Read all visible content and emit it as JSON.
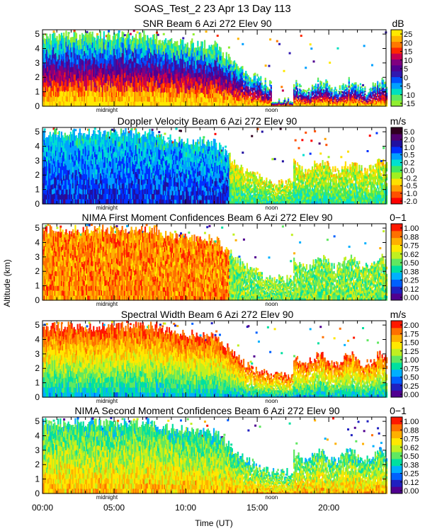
{
  "figure": {
    "title": "SOAS_Test_2  23 Apr 13 Day 113",
    "ylabel": "Altitude (km)",
    "xlabel": "Time (UT)",
    "x_ticks": [
      "00:00",
      "05:00",
      "10:00",
      "15:00",
      "20:00"
    ],
    "x_tick_hours": [
      0,
      5,
      10,
      15,
      20
    ],
    "y_ticks": [
      "0",
      "1",
      "2",
      "3",
      "4",
      "5"
    ],
    "y_tick_values": [
      0,
      1,
      2,
      3,
      4,
      5
    ],
    "marker_labels": {
      "midnight": "midnight",
      "noon": "noon"
    },
    "marker_hours": {
      "midnight": 4.5,
      "noon": 16.0
    }
  },
  "chart_data": [
    {
      "type": "heatmap",
      "title": "SNR Beam 6 Azi 272 Elev 90",
      "units": "dB",
      "xlim": [
        0,
        24
      ],
      "ylim": [
        0,
        5.3
      ],
      "colorbar_ticks": [
        "25",
        "20",
        "15",
        "10",
        "5",
        "0",
        "-5",
        "-10",
        "-15"
      ],
      "colorbar_colors": [
        "#ffe800",
        "#ffb400",
        "#ff7800",
        "#ff2800",
        "#c80050",
        "#800080",
        "#500090",
        "#3018b0",
        "#0050ff",
        "#00a0ff",
        "#00e0c0",
        "#60e860",
        "#90ee30"
      ]
    },
    {
      "type": "heatmap",
      "title": "Doppler Velocity Beam 6 Azi 272 Elev 90",
      "units": "m/s",
      "xlim": [
        0,
        24
      ],
      "ylim": [
        0,
        5.3
      ],
      "colorbar_ticks": [
        "5.0",
        "2.0",
        "1.0",
        "0.5",
        "0.2",
        "0.0",
        "-0.2",
        "-0.5",
        "-1.0",
        "-2.0"
      ],
      "colorbar_colors": [
        "#300020",
        "#500070",
        "#2010a0",
        "#0030ff",
        "#00a0ff",
        "#00e0d0",
        "#40e860",
        "#a0f020",
        "#ffe000",
        "#ffa000",
        "#ff5000",
        "#ff0000"
      ]
    },
    {
      "type": "heatmap",
      "title": "NIMA First Moment Confidences Beam 6 Azi 272 Elev 90",
      "units": "0−1",
      "xlim": [
        0,
        24
      ],
      "ylim": [
        0,
        5.3
      ],
      "colorbar_ticks": [
        "1.00",
        "0.88",
        "0.75",
        "0.62",
        "0.50",
        "0.38",
        "0.25",
        "0.12",
        "0.00"
      ],
      "colorbar_colors": [
        "#ff1800",
        "#ff7000",
        "#ffb000",
        "#ffe800",
        "#c0f020",
        "#60e860",
        "#00e0a0",
        "#00b0ff",
        "#0060ff",
        "#2020c0",
        "#500090"
      ]
    },
    {
      "type": "heatmap",
      "title": "Spectral Width Beam 6 Azi 272 Elev 90",
      "units": "m/s",
      "xlim": [
        0,
        24
      ],
      "ylim": [
        0,
        5.3
      ],
      "colorbar_ticks": [
        "2.00",
        "1.75",
        "1.50",
        "1.25",
        "1.00",
        "0.75",
        "0.50",
        "0.25",
        "0.00"
      ],
      "colorbar_colors": [
        "#ff1800",
        "#ff7000",
        "#ffb000",
        "#ffe800",
        "#c0f020",
        "#60e860",
        "#00e0a0",
        "#00b0ff",
        "#0060ff",
        "#2020c0",
        "#500090"
      ]
    },
    {
      "type": "heatmap",
      "title": "NIMA Second Moment Confidences Beam 6 Azi 272 Elev 90",
      "units": "0−1",
      "xlim": [
        0,
        24
      ],
      "ylim": [
        0,
        5.3
      ],
      "colorbar_ticks": [
        "1.00",
        "0.88",
        "0.75",
        "0.62",
        "0.50",
        "0.38",
        "0.25",
        "0.12",
        "0.00"
      ],
      "colorbar_colors": [
        "#ff1800",
        "#ff7000",
        "#ffb000",
        "#ffe800",
        "#c0f020",
        "#60e860",
        "#00e0a0",
        "#00b0ff",
        "#0060ff",
        "#2020c0",
        "#500090"
      ]
    }
  ]
}
